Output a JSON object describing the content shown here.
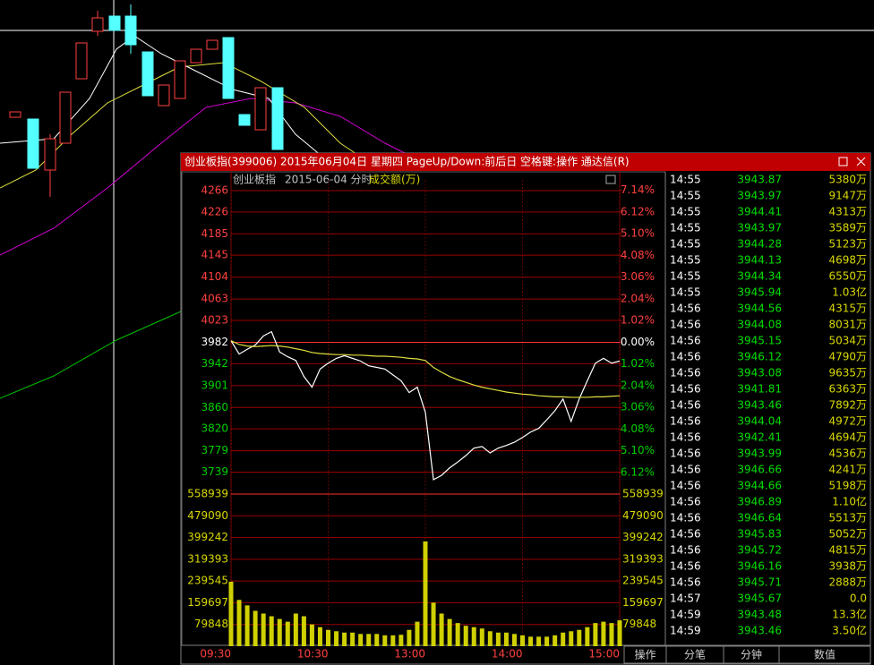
{
  "window": {
    "title": "创业板指(399006) 2015年06月04日 星期四 PageUp/Down:前后日 空格键:操作 通达信(R)"
  },
  "chart_data": [
    {
      "type": "line",
      "title": "创业板指",
      "subtitle": "2015-06-04 分时",
      "x": [
        0,
        5,
        10,
        15,
        20,
        25,
        30,
        35,
        40,
        45,
        50,
        55,
        60,
        65,
        70,
        75,
        80,
        85,
        90,
        95,
        100,
        105,
        110,
        115,
        120,
        125,
        130,
        135,
        140,
        145,
        150,
        155,
        160,
        165,
        170,
        175,
        180,
        185,
        190,
        195,
        200,
        205,
        210,
        215,
        220,
        225,
        230,
        235,
        240
      ],
      "series": [
        {
          "color": "#ffffff",
          "values": [
            3985,
            3960,
            3969,
            3977,
            3994,
            4002,
            3964,
            3955,
            3948,
            3918,
            3898,
            3932,
            3943,
            3952,
            3957,
            3952,
            3947,
            3938,
            3935,
            3932,
            3921,
            3910,
            3888,
            3898,
            3851,
            3725,
            3733,
            3747,
            3758,
            3770,
            3784,
            3787,
            3775,
            3784,
            3789,
            3795,
            3804,
            3814,
            3821,
            3837,
            3854,
            3876,
            3834,
            3876,
            3910,
            3943,
            3952,
            3943,
            3947
          ]
        },
        {
          "color": "#e0e040",
          "values": [
            3985,
            3978,
            3975,
            3974,
            3975,
            3976,
            3975,
            3973,
            3970,
            3967,
            3963,
            3961,
            3960,
            3959,
            3959,
            3958,
            3958,
            3957,
            3956,
            3956,
            3955,
            3954,
            3952,
            3951,
            3948,
            3935,
            3926,
            3918,
            3912,
            3907,
            3902,
            3898,
            3895,
            3892,
            3889,
            3887,
            3885,
            3884,
            3882,
            3881,
            3880,
            3880,
            3879,
            3879,
            3879,
            3880,
            3880,
            3881,
            3882
          ]
        }
      ],
      "xlim": [
        0,
        240
      ],
      "xticks": [
        {
          "value": 0,
          "label": "09:30"
        },
        {
          "value": 60,
          "label": "10:30"
        },
        {
          "value": 120,
          "label": "13:00"
        },
        {
          "value": 180,
          "label": "14:00"
        },
        {
          "value": 240,
          "label": "15:00"
        }
      ],
      "ylim": [
        3698,
        4286
      ],
      "yticks": [
        4266,
        4226,
        4185,
        4145,
        4104,
        4063,
        4023,
        3982,
        3942,
        3901,
        3860,
        3820,
        3779,
        3739
      ],
      "y2lim": [
        -7.132,
        7.634
      ],
      "y2ticks": [
        {
          "value": 7.14,
          "label": "7.14%"
        },
        {
          "value": 6.12,
          "label": "6.12%"
        },
        {
          "value": 5.1,
          "label": "5.10%"
        },
        {
          "value": 4.08,
          "label": "4.08%"
        },
        {
          "value": 3.06,
          "label": "3.06%"
        },
        {
          "value": 2.04,
          "label": "2.04%"
        },
        {
          "value": 1.02,
          "label": "1.02%"
        },
        {
          "value": 0,
          "label": "0.00%"
        },
        {
          "value": -1.02,
          "label": "1.02%"
        },
        {
          "value": -2.04,
          "label": "2.04%"
        },
        {
          "value": -3.06,
          "label": "3.06%"
        },
        {
          "value": -4.08,
          "label": "4.08%"
        },
        {
          "value": -5.1,
          "label": "5.10%"
        },
        {
          "value": -6.12,
          "label": "6.12%"
        }
      ],
      "colors": {
        "up": "#ff4040",
        "down": "#00d000",
        "flat": "#ffffff",
        "grid": "#9a0000"
      },
      "grid": true
    },
    {
      "type": "bar",
      "title": "成交额(万)",
      "color": "#d0d000",
      "x": [
        0,
        5,
        10,
        15,
        20,
        25,
        30,
        35,
        40,
        45,
        50,
        55,
        60,
        65,
        70,
        75,
        80,
        85,
        90,
        95,
        100,
        105,
        110,
        115,
        120,
        125,
        130,
        135,
        140,
        145,
        150,
        155,
        160,
        165,
        170,
        175,
        180,
        185,
        190,
        195,
        200,
        205,
        210,
        215,
        220,
        225,
        230,
        235,
        240
      ],
      "values": [
        237000,
        170000,
        150000,
        130000,
        120000,
        110000,
        100000,
        90000,
        120000,
        110000,
        80000,
        70000,
        60000,
        55000,
        50000,
        50000,
        45000,
        45000,
        45000,
        40000,
        40000,
        42000,
        60000,
        90000,
        385000,
        160000,
        120000,
        100000,
        85000,
        75000,
        70000,
        65000,
        55000,
        50000,
        50000,
        45000,
        40000,
        35000,
        35000,
        35000,
        40000,
        50000,
        55000,
        60000,
        70000,
        85000,
        90000,
        85000,
        95000
      ],
      "xlim": [
        0,
        240
      ],
      "ylim": [
        0,
        558939
      ],
      "yticks": [
        558939,
        479090,
        399242,
        319393,
        239545,
        159697,
        79848
      ],
      "grid": true
    }
  ],
  "table": {
    "rows": [
      [
        "14:55",
        "3943.87",
        "5380万"
      ],
      [
        "14:55",
        "3943.97",
        "9147万"
      ],
      [
        "14:55",
        "3944.41",
        "4313万"
      ],
      [
        "14:55",
        "3943.97",
        "3589万"
      ],
      [
        "14:55",
        "3944.28",
        "5123万"
      ],
      [
        "14:55",
        "3944.13",
        "4698万"
      ],
      [
        "14:55",
        "3944.34",
        "6550万"
      ],
      [
        "14:55",
        "3945.94",
        "1.03亿"
      ],
      [
        "14:56",
        "3944.56",
        "4315万"
      ],
      [
        "14:56",
        "3944.08",
        "8031万"
      ],
      [
        "14:56",
        "3945.15",
        "5034万"
      ],
      [
        "14:56",
        "3946.12",
        "4790万"
      ],
      [
        "14:56",
        "3943.08",
        "9635万"
      ],
      [
        "14:56",
        "3941.81",
        "6363万"
      ],
      [
        "14:56",
        "3943.46",
        "7892万"
      ],
      [
        "14:56",
        "3944.04",
        "4972万"
      ],
      [
        "14:56",
        "3942.41",
        "4694万"
      ],
      [
        "14:56",
        "3943.99",
        "4536万"
      ],
      [
        "14:56",
        "3946.66",
        "4241万"
      ],
      [
        "14:56",
        "3944.66",
        "5198万"
      ],
      [
        "14:56",
        "3946.89",
        "1.10亿"
      ],
      [
        "14:56",
        "3946.64",
        "5513万"
      ],
      [
        "14:56",
        "3945.83",
        "5052万"
      ],
      [
        "14:56",
        "3945.72",
        "4815万"
      ],
      [
        "14:56",
        "3946.16",
        "3938万"
      ],
      [
        "14:56",
        "3945.71",
        "2888万"
      ],
      [
        "14:57",
        "3945.67",
        "0.0"
      ],
      [
        "14:59",
        "3943.48",
        "13.3亿"
      ],
      [
        "14:59",
        "3943.46",
        "3.50亿"
      ]
    ]
  },
  "tabs": [
    "操作",
    "分笔",
    "分钟",
    "数值"
  ]
}
